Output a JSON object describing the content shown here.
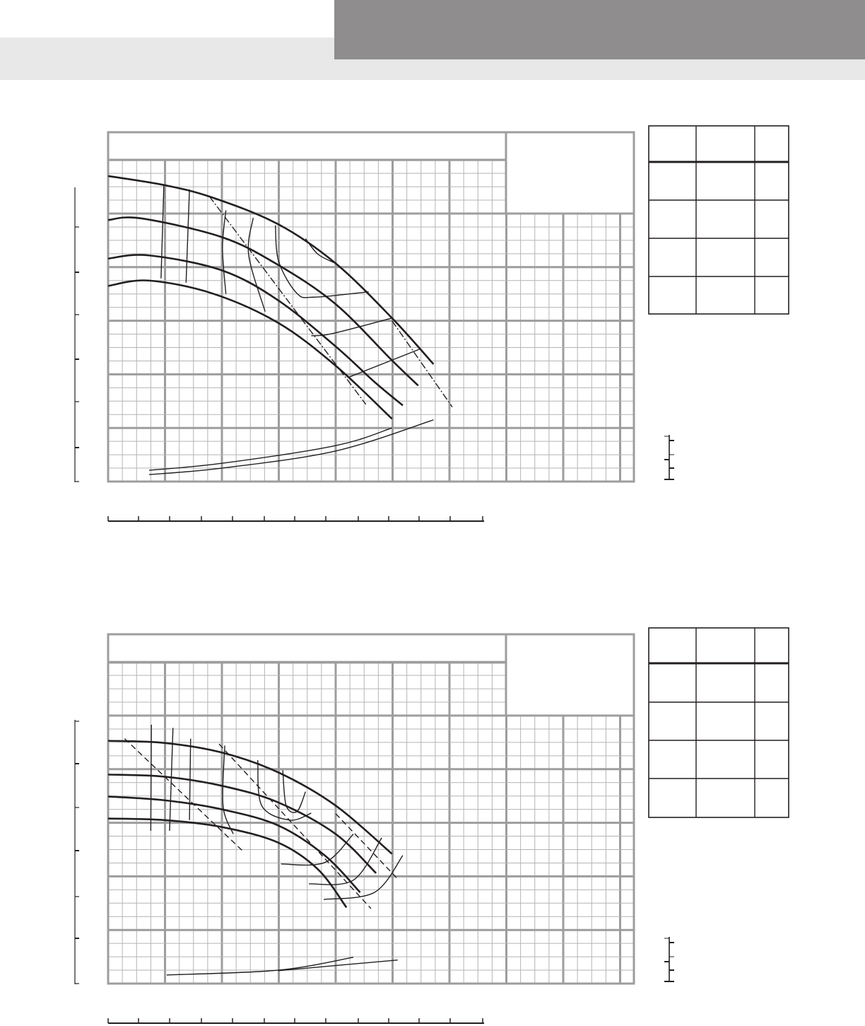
{
  "header": {
    "colors": {
      "band_light": "#e8e8e8",
      "band_dark": "#8f8d8e"
    }
  },
  "chart_data": [
    {
      "type": "line",
      "grid": true,
      "xlim": [
        0,
        9.24
      ],
      "ylim": [
        0,
        6
      ],
      "series": [
        {
          "style": "solid",
          "weight": "heavy",
          "values": [
            [
              0,
              5.7
            ],
            [
              0.99,
              5.53
            ],
            [
              1.83,
              5.3
            ],
            [
              2.99,
              4.8
            ],
            [
              4.0,
              4.07
            ],
            [
              4.99,
              3.05
            ],
            [
              5.72,
              2.19
            ]
          ]
        },
        {
          "style": "solid",
          "weight": "heavy",
          "values": [
            [
              0,
              4.88
            ],
            [
              0.58,
              4.91
            ],
            [
              2.0,
              4.56
            ],
            [
              2.99,
              4.04
            ],
            [
              4.0,
              3.31
            ],
            [
              4.99,
              2.26
            ],
            [
              5.45,
              1.79
            ]
          ]
        },
        {
          "style": "solid",
          "weight": "heavy",
          "values": [
            [
              0,
              4.16
            ],
            [
              0.71,
              4.22
            ],
            [
              2.0,
              3.94
            ],
            [
              2.99,
              3.38
            ],
            [
              4.0,
              2.52
            ],
            [
              4.68,
              1.86
            ],
            [
              5.18,
              1.42
            ]
          ]
        },
        {
          "style": "solid",
          "weight": "heavy",
          "values": [
            [
              0,
              3.65
            ],
            [
              0.71,
              3.75
            ],
            [
              1.83,
              3.51
            ],
            [
              2.99,
              2.96
            ],
            [
              4.0,
              2.16
            ],
            [
              4.99,
              1.17
            ]
          ]
        },
        {
          "style": "solid",
          "weight": "light",
          "values": [
            [
              0.72,
              0.21
            ],
            [
              2.0,
              0.34
            ],
            [
              4.0,
              0.67
            ],
            [
              4.99,
              1.0
            ]
          ]
        },
        {
          "style": "solid",
          "weight": "light",
          "values": [
            [
              0.72,
              0.13
            ],
            [
              2.0,
              0.25
            ],
            [
              4.0,
              0.57
            ],
            [
              5.72,
              1.15
            ]
          ]
        },
        {
          "style": "solid",
          "weight": "light",
          "values": [
            [
              0.98,
              5.53
            ],
            [
              0.93,
              3.79
            ]
          ]
        },
        {
          "style": "solid",
          "weight": "light",
          "values": [
            [
              1.43,
              5.45
            ],
            [
              1.37,
              3.71
            ]
          ]
        },
        {
          "style": "solid",
          "weight": "light",
          "values": [
            [
              2.07,
              5.06
            ],
            [
              2.01,
              4.36
            ],
            [
              2.07,
              3.5
            ]
          ]
        },
        {
          "style": "solid",
          "weight": "light",
          "values": [
            [
              2.55,
              4.92
            ],
            [
              2.47,
              4.23
            ],
            [
              2.76,
              3.17
            ]
          ]
        },
        {
          "style": "solid",
          "weight": "light",
          "values": [
            [
              2.94,
              4.78
            ],
            [
              3.0,
              4.1
            ],
            [
              3.32,
              3.51
            ],
            [
              3.63,
              3.44
            ],
            [
              4.58,
              3.54
            ]
          ]
        },
        {
          "style": "solid",
          "weight": "light",
          "values": [
            [
              3.47,
              4.53
            ],
            [
              3.69,
              4.24
            ],
            [
              4.0,
              4.07
            ]
          ]
        },
        {
          "style": "solid",
          "weight": "light",
          "values": [
            [
              3.57,
              2.72
            ],
            [
              3.94,
              2.76
            ],
            [
              4.99,
              3.05
            ]
          ]
        },
        {
          "style": "solid",
          "weight": "light",
          "values": [
            [
              4.24,
              1.95
            ],
            [
              5.5,
              2.48
            ]
          ]
        },
        {
          "style": "dashdot",
          "weight": "light",
          "values": [
            [
              1.78,
              5.32
            ],
            [
              4.53,
              1.44
            ]
          ]
        },
        {
          "style": "dashdot",
          "weight": "light",
          "values": [
            [
              4.99,
              3.0
            ],
            [
              6.05,
              1.39
            ]
          ]
        }
      ]
    },
    {
      "type": "line",
      "grid": true,
      "xlim": [
        0,
        9.24
      ],
      "ylim": [
        0,
        6
      ],
      "series": [
        {
          "style": "solid",
          "weight": "heavy",
          "values": [
            [
              0,
              4.53
            ],
            [
              0.99,
              4.49
            ],
            [
              2.0,
              4.31
            ],
            [
              2.99,
              3.94
            ],
            [
              4.0,
              3.32
            ],
            [
              4.99,
              2.42
            ]
          ]
        },
        {
          "style": "solid",
          "weight": "heavy",
          "values": [
            [
              0,
              3.9
            ],
            [
              0.99,
              3.86
            ],
            [
              2.0,
              3.69
            ],
            [
              2.99,
              3.38
            ],
            [
              4.0,
              2.79
            ],
            [
              4.71,
              2.06
            ]
          ]
        },
        {
          "style": "solid",
          "weight": "heavy",
          "values": [
            [
              0,
              3.49
            ],
            [
              0.99,
              3.42
            ],
            [
              2.0,
              3.25
            ],
            [
              2.99,
              2.95
            ],
            [
              3.81,
              2.39
            ],
            [
              4.43,
              1.7
            ]
          ]
        },
        {
          "style": "solid",
          "weight": "heavy",
          "values": [
            [
              0,
              3.08
            ],
            [
              0.99,
              3.05
            ],
            [
              2.0,
              2.92
            ],
            [
              2.99,
              2.63
            ],
            [
              3.69,
              2.13
            ],
            [
              4.19,
              1.42
            ]
          ]
        },
        {
          "style": "solid",
          "weight": "light",
          "values": [
            [
              1.03,
              0.16
            ],
            [
              2.99,
              0.25
            ],
            [
              4.31,
              0.49
            ]
          ]
        },
        {
          "style": "solid",
          "weight": "light",
          "values": [
            [
              2.99,
              0.24
            ],
            [
              5.09,
              0.44
            ]
          ]
        },
        {
          "style": "solid",
          "weight": "light",
          "values": [
            [
              0.76,
              4.83
            ],
            [
              0.75,
              2.85
            ]
          ]
        },
        {
          "style": "solid",
          "weight": "light",
          "values": [
            [
              1.14,
              4.77
            ],
            [
              1.08,
              2.85
            ]
          ]
        },
        {
          "style": "solid",
          "weight": "light",
          "values": [
            [
              1.45,
              4.57
            ],
            [
              1.43,
              3.05
            ]
          ]
        },
        {
          "style": "solid",
          "weight": "light",
          "values": [
            [
              2.05,
              4.44
            ],
            [
              2.02,
              3.32
            ],
            [
              2.2,
              2.79
            ]
          ]
        },
        {
          "style": "solid",
          "weight": "light",
          "values": [
            [
              2.63,
              4.17
            ],
            [
              2.7,
              3.32
            ],
            [
              3.19,
              3.05
            ],
            [
              3.57,
              3.18
            ]
          ]
        },
        {
          "style": "solid",
          "weight": "light",
          "values": [
            [
              3.07,
              3.98
            ],
            [
              3.13,
              3.32
            ],
            [
              3.32,
              3.21
            ],
            [
              3.47,
              3.58
            ]
          ]
        },
        {
          "style": "solid",
          "weight": "light",
          "values": [
            [
              3.04,
              2.23
            ],
            [
              3.81,
              2.26
            ],
            [
              4.31,
              2.79
            ]
          ]
        },
        {
          "style": "solid",
          "weight": "light",
          "values": [
            [
              3.53,
              1.86
            ],
            [
              4.31,
              1.93
            ],
            [
              4.81,
              2.72
            ]
          ]
        },
        {
          "style": "solid",
          "weight": "light",
          "values": [
            [
              3.79,
              1.57
            ],
            [
              4.68,
              1.7
            ],
            [
              5.18,
              2.39
            ]
          ]
        },
        {
          "style": "dashed",
          "weight": "light",
          "values": [
            [
              0.29,
              4.57
            ],
            [
              2.36,
              2.48
            ]
          ]
        },
        {
          "style": "dashed",
          "weight": "light",
          "values": [
            [
              1.95,
              4.47
            ],
            [
              4.62,
              1.4
            ]
          ]
        },
        {
          "style": "dashed",
          "weight": "light",
          "values": [
            [
              4.0,
              3.17
            ],
            [
              5.11,
              1.93
            ]
          ]
        }
      ]
    }
  ]
}
